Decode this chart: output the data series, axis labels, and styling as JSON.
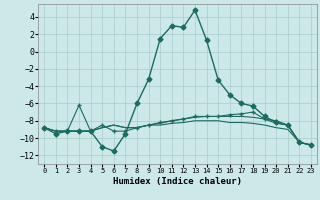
{
  "xlabel": "Humidex (Indice chaleur)",
  "background_color": "#cce8e8",
  "grid_color": "#aacccc",
  "line_color": "#1a6b62",
  "xlim": [
    -0.5,
    23.5
  ],
  "ylim": [
    -13,
    5.5
  ],
  "yticks": [
    -12,
    -10,
    -8,
    -6,
    -4,
    -2,
    0,
    2,
    4
  ],
  "xticks": [
    0,
    1,
    2,
    3,
    4,
    5,
    6,
    7,
    8,
    9,
    10,
    11,
    12,
    13,
    14,
    15,
    16,
    17,
    18,
    19,
    20,
    21,
    22,
    23
  ],
  "series": [
    {
      "x": [
        0,
        1,
        2,
        3,
        4,
        5,
        6,
        7,
        8,
        9,
        10,
        11,
        12,
        13,
        14,
        15,
        16,
        17,
        18,
        19,
        20,
        21,
        22,
        23
      ],
      "y": [
        -8.8,
        -9.5,
        -9.2,
        -9.2,
        -9.2,
        -11.0,
        -11.5,
        -9.5,
        -6.0,
        -3.2,
        1.5,
        3.0,
        2.8,
        4.8,
        1.3,
        -3.3,
        -5.0,
        -6.0,
        -6.3,
        -7.5,
        -8.2,
        -8.5,
        -10.5,
        -10.8
      ],
      "marker": "D",
      "markersize": 2.5,
      "linewidth": 1.0,
      "zorder": 5
    },
    {
      "x": [
        0,
        1,
        2,
        3,
        4,
        5,
        6,
        7,
        8,
        9,
        10,
        11,
        12,
        13,
        14,
        15,
        16,
        17,
        18,
        19,
        20,
        21,
        22,
        23
      ],
      "y": [
        -8.8,
        -9.2,
        -9.2,
        -6.2,
        -9.2,
        -8.5,
        -9.2,
        -9.2,
        -8.8,
        -8.5,
        -8.2,
        -8.0,
        -7.8,
        -7.5,
        -7.5,
        -7.5,
        -7.3,
        -7.2,
        -7.0,
        -7.8,
        -8.0,
        -8.5,
        -10.5,
        -10.8
      ],
      "marker": "+",
      "markersize": 3.0,
      "linewidth": 0.8,
      "zorder": 4
    },
    {
      "x": [
        0,
        1,
        2,
        3,
        4,
        5,
        6,
        7,
        8,
        9,
        10,
        11,
        12,
        13,
        14,
        15,
        16,
        17,
        18,
        19,
        20,
        21,
        22,
        23
      ],
      "y": [
        -8.8,
        -9.2,
        -9.2,
        -9.2,
        -9.2,
        -8.8,
        -8.5,
        -8.8,
        -8.8,
        -8.5,
        -8.5,
        -8.3,
        -8.2,
        -8.0,
        -8.0,
        -8.0,
        -8.2,
        -8.2,
        -8.3,
        -8.5,
        -8.8,
        -9.0,
        -10.5,
        -10.8
      ],
      "marker": null,
      "markersize": 0,
      "linewidth": 0.8,
      "zorder": 3
    },
    {
      "x": [
        0,
        1,
        2,
        3,
        4,
        5,
        6,
        7,
        8,
        9,
        10,
        11,
        12,
        13,
        14,
        15,
        16,
        17,
        18,
        19,
        20,
        21,
        22,
        23
      ],
      "y": [
        -8.8,
        -9.2,
        -9.2,
        -9.2,
        -9.2,
        -8.8,
        -8.5,
        -8.8,
        -8.8,
        -8.5,
        -8.3,
        -8.0,
        -7.8,
        -7.6,
        -7.5,
        -7.5,
        -7.5,
        -7.5,
        -7.6,
        -7.8,
        -8.3,
        -8.5,
        -10.5,
        -10.8
      ],
      "marker": null,
      "markersize": 0,
      "linewidth": 0.8,
      "zorder": 3
    }
  ]
}
